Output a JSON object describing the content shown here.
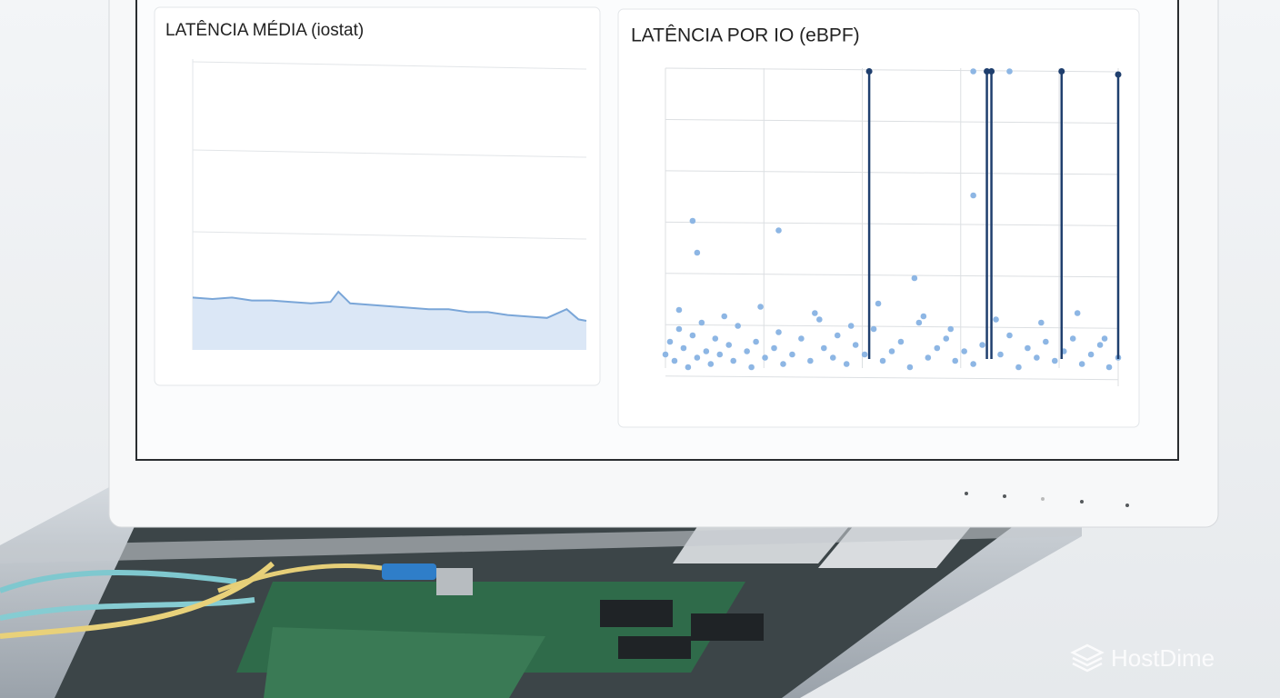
{
  "chart_data": [
    {
      "type": "area",
      "title": "LATÊNCIA MÉDIA (iostat)",
      "color": "#7aa6d8",
      "fill": "#dbe7f6",
      "x": [
        0,
        5,
        10,
        15,
        20,
        25,
        30,
        35,
        37,
        40,
        45,
        50,
        55,
        60,
        65,
        70,
        75,
        80,
        85,
        90,
        95,
        98,
        100
      ],
      "values": [
        18,
        17.5,
        18,
        17,
        17,
        16.5,
        16,
        16.5,
        20,
        16,
        15.5,
        15,
        14.5,
        14,
        14,
        13,
        13,
        12,
        11.5,
        11,
        14,
        10.5,
        10
      ],
      "xlim": [
        0,
        100
      ],
      "ylim": [
        0,
        100
      ]
    },
    {
      "type": "scatter",
      "title": "LATÊNCIA POR IO (eBPF)",
      "xlim": [
        0,
        100
      ],
      "ylim": [
        0,
        100
      ],
      "grid": true,
      "series": [
        {
          "color": "#8db6e4",
          "x": [
            0,
            1,
            2,
            3,
            4,
            5,
            6,
            7,
            8,
            9,
            10,
            11,
            12,
            14,
            15,
            16,
            18,
            19,
            20,
            22,
            24,
            25,
            26,
            28,
            30,
            32,
            34,
            35,
            37,
            38,
            40,
            42,
            44,
            46,
            48,
            50,
            52,
            54,
            56,
            58,
            60,
            62,
            64,
            66,
            68,
            70,
            74,
            76,
            78,
            80,
            82,
            84,
            86,
            88,
            90,
            92,
            94,
            96,
            98,
            100,
            6,
            7,
            25,
            68,
            55,
            68,
            76,
            3,
            13,
            21,
            33,
            41,
            47,
            57,
            63,
            73,
            83,
            91,
            97
          ],
          "values": [
            10,
            14,
            8,
            18,
            12,
            6,
            16,
            9,
            20,
            11,
            7,
            15,
            10,
            13,
            8,
            19,
            11,
            6,
            14,
            9,
            12,
            17,
            7,
            10,
            15,
            8,
            21,
            12,
            9,
            16,
            7,
            13,
            10,
            18,
            8,
            11,
            14,
            6,
            20,
            9,
            12,
            15,
            8,
            11,
            7,
            13,
            10,
            16,
            6,
            12,
            9,
            14,
            8,
            11,
            15,
            7,
            10,
            13,
            6,
            9,
            52,
            42,
            49,
            60,
            34,
            99,
            99,
            24,
            22,
            25,
            23,
            19,
            26,
            22,
            18,
            21,
            20,
            23,
            15
          ]
        },
        {
          "color": "#1f3f6e",
          "stem": true,
          "x": [
            45,
            71,
            72,
            87.5,
            100
          ],
          "values": [
            99,
            99,
            99,
            99,
            98
          ]
        }
      ]
    }
  ],
  "watermark": "HostDime"
}
